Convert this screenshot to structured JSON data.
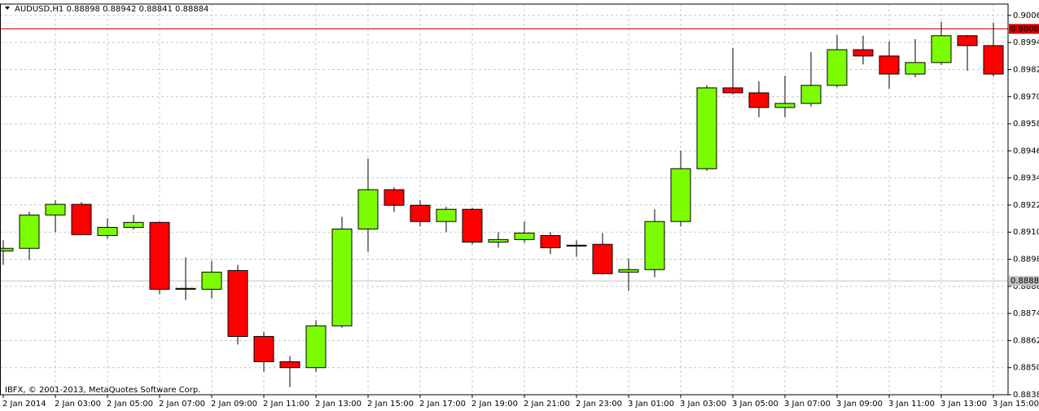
{
  "chart_data": {
    "type": "candlestick",
    "title": "AUDUSD,H1  0.88898 0.88942 0.88841 0.88884",
    "annotation": "IBFX, © 2001-2013, MetaQuotes Software Corp.",
    "categories": [
      "2 Jan 2014",
      null,
      "2 Jan 03:00",
      null,
      "2 Jan 05:00",
      null,
      "2 Jan 07:00",
      null,
      "2 Jan 09:00",
      null,
      "2 Jan 11:00",
      null,
      "2 Jan 13:00",
      null,
      "2 Jan 15:00",
      null,
      "2 Jan 17:00",
      null,
      "2 Jan 19:00",
      null,
      "2 Jan 21:00",
      null,
      "2 Jan 23:00",
      null,
      "3 Jan 01:00",
      null,
      "3 Jan 03:00",
      null,
      "3 Jan 05:00",
      null,
      "3 Jan 07:00",
      null,
      "3 Jan 09:00",
      null,
      "3 Jan 11:00",
      null,
      "3 Jan 13:00",
      null,
      "3 Jan 15:00"
    ],
    "open": [
      0.89017,
      0.89028,
      0.89176,
      0.89223,
      0.89085,
      0.89121,
      0.89143,
      0.88847,
      0.88847,
      0.8893,
      0.88638,
      0.88526,
      0.885,
      0.88685,
      0.89114,
      0.89288,
      0.89219,
      0.89147,
      0.89201,
      0.89056,
      0.89067,
      0.89085,
      0.89042,
      0.89046,
      0.88923,
      0.88934,
      0.89147,
      0.89381,
      0.89739,
      0.89717,
      0.89652,
      0.8967,
      0.8975,
      0.89908,
      0.8988,
      0.898,
      0.89851,
      0.8997,
      0.89926
    ],
    "high": [
      0.89064,
      0.8919,
      0.89241,
      0.89233,
      0.89161,
      0.89176,
      0.89147,
      0.88988,
      0.88973,
      0.88955,
      0.88659,
      0.88551,
      0.8871,
      0.89168,
      0.89425,
      0.89298,
      0.89241,
      0.89212,
      0.89208,
      0.891,
      0.89147,
      0.891,
      0.89064,
      0.89096,
      0.88984,
      0.89201,
      0.89461,
      0.8975,
      0.89916,
      0.89768,
      0.89793,
      0.89898,
      0.89973,
      0.8997,
      0.89945,
      0.89955,
      0.90031,
      0.89973,
      0.90028
    ],
    "low": [
      0.88955,
      0.88977,
      0.891,
      0.89089,
      0.89071,
      0.89111,
      0.88825,
      0.888,
      0.88807,
      0.88602,
      0.88482,
      0.88414,
      0.88482,
      0.88677,
      0.89013,
      0.8919,
      0.89125,
      0.891,
      0.89046,
      0.89031,
      0.89053,
      0.89002,
      0.88991,
      0.88912,
      0.8884,
      0.88901,
      0.89125,
      0.89371,
      0.8971,
      0.89609,
      0.89609,
      0.89656,
      0.89742,
      0.89843,
      0.89735,
      0.89786,
      0.8984,
      0.89815,
      0.89789
    ],
    "close": [
      0.89028,
      0.89176,
      0.89223,
      0.89089,
      0.89121,
      0.89143,
      0.88847,
      0.88851,
      0.88923,
      0.88638,
      0.88526,
      0.885,
      0.88685,
      0.89114,
      0.89288,
      0.89219,
      0.89147,
      0.89201,
      0.89056,
      0.89067,
      0.89096,
      0.89031,
      0.89042,
      0.88916,
      0.88934,
      0.89147,
      0.89381,
      0.89739,
      0.89717,
      0.89652,
      0.8967,
      0.8975,
      0.89908,
      0.8988,
      0.898,
      0.89851,
      0.8997,
      0.89926,
      0.898
    ],
    "up_color": "#7cfc00",
    "down_color": "#ff0000",
    "ylim": [
      0.8838,
      0.9011
    ],
    "yticks": [
      {
        "value": 0.9006,
        "label": "0.90060"
      },
      {
        "value": 0.8994,
        "label": "0.89940"
      },
      {
        "value": 0.8982,
        "label": "0.89820"
      },
      {
        "value": 0.897,
        "label": "0.89700"
      },
      {
        "value": 0.8958,
        "label": "0.89580"
      },
      {
        "value": 0.8946,
        "label": "0.89460"
      },
      {
        "value": 0.8934,
        "label": "0.89340"
      },
      {
        "value": 0.8922,
        "label": "0.89220"
      },
      {
        "value": 0.891,
        "label": "0.89100"
      },
      {
        "value": 0.8898,
        "label": "0.88980"
      },
      {
        "value": 0.8886,
        "label": "0.88860"
      },
      {
        "value": 0.8874,
        "label": "0.88740"
      },
      {
        "value": 0.8862,
        "label": "0.88620"
      },
      {
        "value": 0.885,
        "label": "0.88500"
      },
      {
        "value": 0.8838,
        "label": "0.88380"
      }
    ],
    "levels": [
      {
        "value": 0.9,
        "label": "0.90000",
        "color": "#d00000"
      },
      {
        "value": 0.88884,
        "label": "0.88884",
        "color": "#c0c0c0"
      }
    ],
    "grid": true
  }
}
